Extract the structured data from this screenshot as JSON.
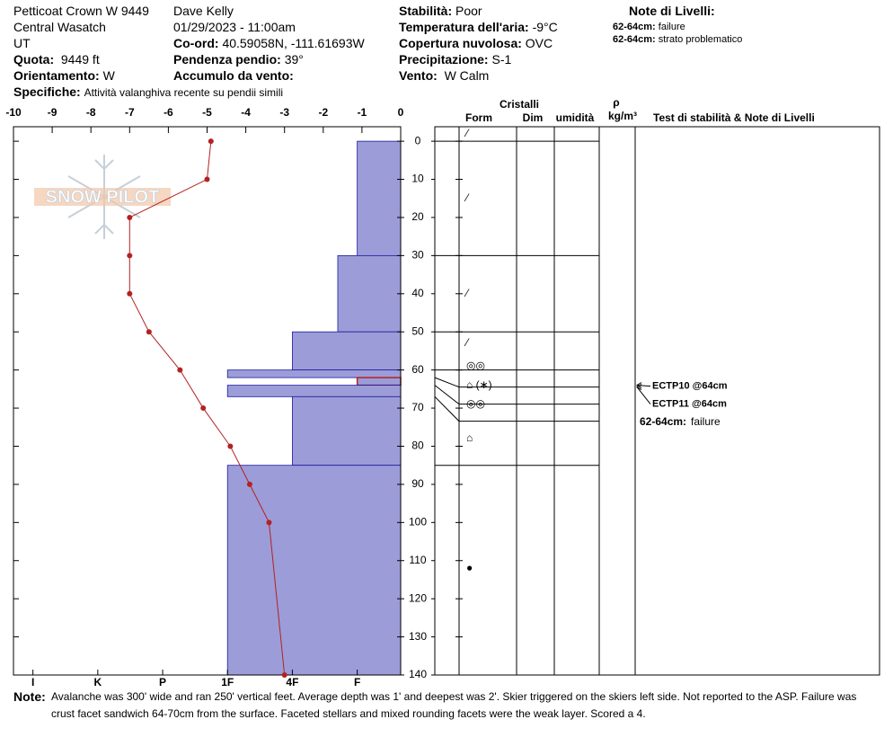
{
  "header": {
    "location": "Petticoat Crown W 9449",
    "range": "Central Wasatch",
    "state": "UT",
    "quota": {
      "label": "Quota:",
      "value": "9449 ft"
    },
    "orientamento": {
      "label": "Orientamento:",
      "value": "W"
    },
    "specifiche": {
      "label": "Specifiche:",
      "value": "Attività valanghiva recente su pendii simili"
    },
    "observer": "Dave Kelly",
    "datetime": "01/29/2023 - 11:00am",
    "coord": {
      "label": "Co-ord:",
      "value": "40.59058N, -111.61693W"
    },
    "pendenza": {
      "label": "Pendenza pendio:",
      "value": "39°"
    },
    "accumulo": {
      "label": "Accumulo da vento:"
    },
    "stabilita": {
      "label": "Stabilità:",
      "value": "Poor"
    },
    "temperatura": {
      "label": "Temperatura dell'aria:",
      "value": "-9°C"
    },
    "copertura": {
      "label": "Copertura nuvolosa:",
      "value": "OVC"
    },
    "precipitazione": {
      "label": "Precipitazione:",
      "value": "S-1"
    },
    "vento": {
      "label": "Vento:",
      "value": "W Calm"
    },
    "notes_title": "Note di Livelli:",
    "notes": [
      {
        "depth": "62-64cm:",
        "text": "failure"
      },
      {
        "depth": "62-64cm:",
        "text": "strato problematico"
      }
    ]
  },
  "chart_data": {
    "type": "snow-profile",
    "logo": "SNOW PILOT",
    "temp_lim": [
      -10,
      0
    ],
    "temp_ticks": [
      -10,
      -9,
      -8,
      -7,
      -6,
      -5,
      -4,
      -3,
      -2,
      -1,
      0
    ],
    "depth_lim": [
      -3.8,
      140
    ],
    "depth_ticks": [
      0,
      10,
      20,
      30,
      40,
      50,
      60,
      70,
      80,
      90,
      100,
      110,
      120,
      130,
      140
    ],
    "hardness_lim": [
      6.3,
      0.33
    ],
    "hardness_ticks": [
      {
        "value": 6,
        "label": "I"
      },
      {
        "value": 5,
        "label": "K"
      },
      {
        "value": 4,
        "label": "P"
      },
      {
        "value": 3,
        "label": "1F"
      },
      {
        "value": 2,
        "label": "4F"
      },
      {
        "value": 1,
        "label": "F"
      }
    ],
    "temperature": {
      "color": "#b22222",
      "depths": [
        0,
        10,
        20,
        30,
        40,
        50,
        60,
        70,
        80,
        90,
        100,
        140
      ],
      "values": [
        -4.9,
        -5.0,
        -7.0,
        -7.0,
        -7.0,
        -6.5,
        -5.7,
        -5.1,
        -4.4,
        -3.9,
        -3.4,
        -3.0
      ]
    },
    "layers": {
      "color": "#9c9cd8",
      "problem_color": "#b22222",
      "problem_layer": 4,
      "tops": [
        0,
        30,
        50,
        60,
        62,
        64,
        67,
        85
      ],
      "bottoms": [
        30,
        50,
        60,
        62,
        64,
        67,
        85,
        140
      ],
      "hardness": [
        1,
        1.3,
        2,
        3,
        1,
        3,
        2,
        3
      ]
    },
    "columns": {
      "crystals": "Cristalli",
      "form": "Form",
      "size": "Dim",
      "moisture": "umidità",
      "density_symbol": "ρ",
      "density_unit": "kg/m³",
      "tests": "Test di stabilità & Note di Livelli"
    },
    "grains": [
      {
        "depth": -2,
        "symbol": "⁄"
      },
      {
        "depth": 15,
        "symbol": "⁄"
      },
      {
        "depth": 40,
        "symbol": "⁄"
      },
      {
        "depth": 53,
        "symbol": "⁄"
      },
      {
        "depth": 59,
        "symbol": "◎◎"
      },
      {
        "depth": 64,
        "symbol": "⌂ (∗)"
      },
      {
        "depth": 69,
        "symbol": "◎◎"
      },
      {
        "depth": 78,
        "symbol": "⌂"
      },
      {
        "depth": 112,
        "symbol": "●"
      }
    ],
    "tests": [
      {
        "depth": 64,
        "label": "ECTP10 @64cm"
      },
      {
        "depth": 64,
        "label": "ECTP11 @64cm"
      }
    ],
    "layer_notes": [
      {
        "depth_label": "62-64cm:",
        "text": "failure"
      }
    ]
  },
  "footer": {
    "label": "Note:",
    "text": "Avalanche was 300' wide and ran 250' vertical feet. Average depth was 1' and deepest was 2'. Skier triggered on the skiers left side. Not reported to the ASP. Failure was crust facet sandwich 64-70cm from the surface. Faceted stellars and mixed rounding facets were the weak layer. Scored a 4."
  }
}
